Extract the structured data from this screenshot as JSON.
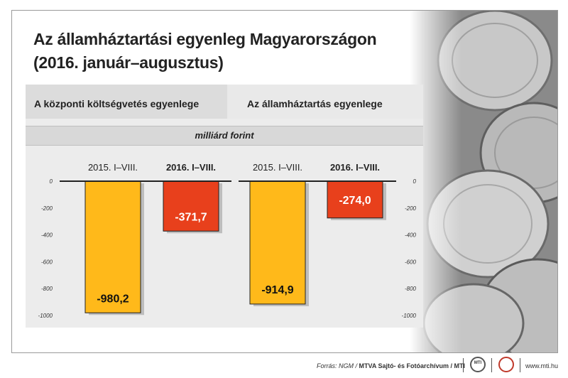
{
  "title_line1": "Az államháztartási egyenleg Magyarországon",
  "title_line2": "(2016. január–augusztus)",
  "panels": {
    "left_title": "A központi költségvetés egyenlege",
    "right_title": "Az államháztartás egyenlege"
  },
  "unit": "milliárd forint",
  "footer": {
    "source_prefix": "Forrás: NGM / ",
    "source_bold": "MTVA Sajtó- és Fotóarchívum / MTI",
    "logo1": "MTI",
    "site": "www.mti.hu"
  },
  "colors": {
    "bar_2015": "#ffb91a",
    "bar_2016": "#e8401c",
    "baseline": "#222222"
  },
  "chart_data": {
    "type": "bar",
    "groups": [
      {
        "name": "A központi költségvetés egyenlege",
        "categories": [
          "2015. I–VIII.",
          "2016. I–VIII."
        ],
        "values": [
          -980.2,
          -371.7
        ],
        "labels": [
          "-980,2",
          "-371,7"
        ]
      },
      {
        "name": "Az államháztartás egyenlege",
        "categories": [
          "2015. I–VIII.",
          "2016. I–VIII."
        ],
        "values": [
          -914.9,
          -274.0
        ],
        "labels": [
          "-914,9",
          "-274,0"
        ]
      }
    ],
    "ylim": [
      -1000,
      0
    ],
    "yticks": [
      0,
      -200,
      -400,
      -600,
      -800,
      -1000
    ],
    "ytick_labels": [
      "0",
      "-200",
      "-400",
      "-600",
      "-800",
      "-1000"
    ],
    "bold_category": "2016. I–VIII."
  }
}
